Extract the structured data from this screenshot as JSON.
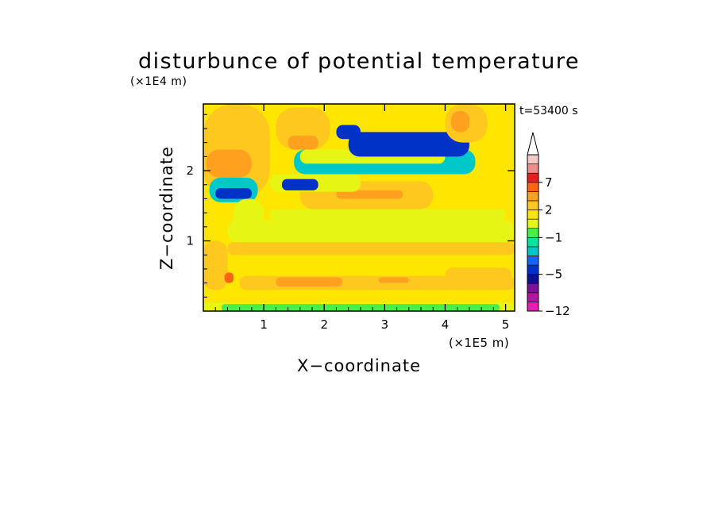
{
  "chart_data": {
    "type": "heatmap",
    "title": "disturbunce of potential temperature",
    "time_label": "t=53400 s",
    "xlabel": "X−coordinate",
    "ylabel": "Z−coordinate",
    "x_unit": "(×1E5 m)",
    "y_unit": "(×1E4 m)",
    "xlim": [
      0,
      5.15
    ],
    "ylim": [
      0,
      2.95
    ],
    "x_ticks": [
      "1",
      "2",
      "3",
      "4",
      "5"
    ],
    "y_ticks": [
      "1",
      "2"
    ],
    "grid": false,
    "colorbar": {
      "levels": [
        -12,
        -10,
        -8,
        -6,
        -5,
        -4,
        -3,
        -2,
        -1,
        0,
        1,
        2,
        3,
        5,
        7,
        9,
        11
      ],
      "colors": [
        "#e61eb4",
        "#b4149f",
        "#7d0f9b",
        "#0a0f96",
        "#0032c8",
        "#1464ff",
        "#00c8c8",
        "#00e6a0",
        "#46f046",
        "#e6f514",
        "#ffe600",
        "#ffc81e",
        "#ffa01e",
        "#ff6414",
        "#e61e1e",
        "#f08c8c",
        "#f5c8c8"
      ],
      "tick_labels": [
        {
          "level": 7,
          "label": "7"
        },
        {
          "level": 2,
          "label": "2"
        },
        {
          "level": -1,
          "label": "−1"
        },
        {
          "level": -5,
          "label": "−5"
        },
        {
          "level": -12,
          "label": "−12"
        }
      ],
      "extend": "max"
    },
    "regions": [
      {
        "x": [
          0.0,
          5.15
        ],
        "z": [
          0.0,
          2.95
        ],
        "value": 1.5
      },
      {
        "x": [
          0.0,
          5.15
        ],
        "z": [
          0.0,
          0.12
        ],
        "value": 0.5
      },
      {
        "x": [
          0.3,
          4.9
        ],
        "z": [
          0.0,
          0.1
        ],
        "value": -0.5
      },
      {
        "x": [
          0.6,
          5.15
        ],
        "z": [
          0.3,
          0.5
        ],
        "value": 2.5
      },
      {
        "x": [
          1.2,
          2.3
        ],
        "z": [
          0.35,
          0.48
        ],
        "value": 3.5
      },
      {
        "x": [
          2.9,
          3.4
        ],
        "z": [
          0.4,
          0.48
        ],
        "value": 3.5
      },
      {
        "x": [
          4.0,
          5.1
        ],
        "z": [
          0.38,
          0.62
        ],
        "value": 2.5
      },
      {
        "x": [
          0.4,
          5.15
        ],
        "z": [
          0.8,
          0.98
        ],
        "value": 2.5
      },
      {
        "x": [
          0.4,
          5.15
        ],
        "z": [
          0.98,
          1.3
        ],
        "value": 0.5
      },
      {
        "x": [
          1.1,
          5.0
        ],
        "z": [
          1.3,
          1.45
        ],
        "value": 0.5
      },
      {
        "x": [
          1.6,
          3.8
        ],
        "z": [
          1.45,
          1.85
        ],
        "value": 2.5
      },
      {
        "x": [
          2.2,
          3.3
        ],
        "z": [
          1.6,
          1.72
        ],
        "value": 4.0
      },
      {
        "x": [
          1.1,
          2.6
        ],
        "z": [
          1.7,
          1.95
        ],
        "value": 0.5
      },
      {
        "x": [
          1.3,
          1.9
        ],
        "z": [
          1.72,
          1.88
        ],
        "value": -4.5
      },
      {
        "x": [
          1.5,
          4.5
        ],
        "z": [
          1.95,
          2.3
        ],
        "value": -2.5
      },
      {
        "x": [
          1.6,
          4.0
        ],
        "z": [
          2.1,
          2.3
        ],
        "value": 0.5
      },
      {
        "x": [
          2.4,
          4.4
        ],
        "z": [
          2.2,
          2.55
        ],
        "value": -4.5
      },
      {
        "x": [
          2.2,
          2.6
        ],
        "z": [
          2.45,
          2.65
        ],
        "value": -4.5
      },
      {
        "x": [
          1.2,
          2.1
        ],
        "z": [
          2.3,
          2.9
        ],
        "value": 2.5
      },
      {
        "x": [
          1.4,
          1.9
        ],
        "z": [
          2.3,
          2.5
        ],
        "value": 4.0
      },
      {
        "x": [
          4.0,
          4.7
        ],
        "z": [
          2.4,
          2.95
        ],
        "value": 2.5
      },
      {
        "x": [
          4.1,
          4.4
        ],
        "z": [
          2.55,
          2.85
        ],
        "value": 4.0
      },
      {
        "x": [
          0.0,
          1.1
        ],
        "z": [
          1.6,
          2.95
        ],
        "value": 2.5
      },
      {
        "x": [
          0.05,
          0.8
        ],
        "z": [
          1.9,
          2.3
        ],
        "value": 4.0
      },
      {
        "x": [
          0.1,
          0.9
        ],
        "z": [
          1.55,
          1.9
        ],
        "value": -2.5
      },
      {
        "x": [
          0.2,
          0.8
        ],
        "z": [
          1.6,
          1.75
        ],
        "value": -4.5
      },
      {
        "x": [
          0.5,
          1.0
        ],
        "z": [
          1.1,
          1.6
        ],
        "value": 0.5
      },
      {
        "x": [
          0.0,
          0.4
        ],
        "z": [
          0.3,
          1.0
        ],
        "value": 2.5
      },
      {
        "x": [
          0.35,
          0.5
        ],
        "z": [
          0.4,
          0.55
        ],
        "value": 5.0
      }
    ]
  }
}
